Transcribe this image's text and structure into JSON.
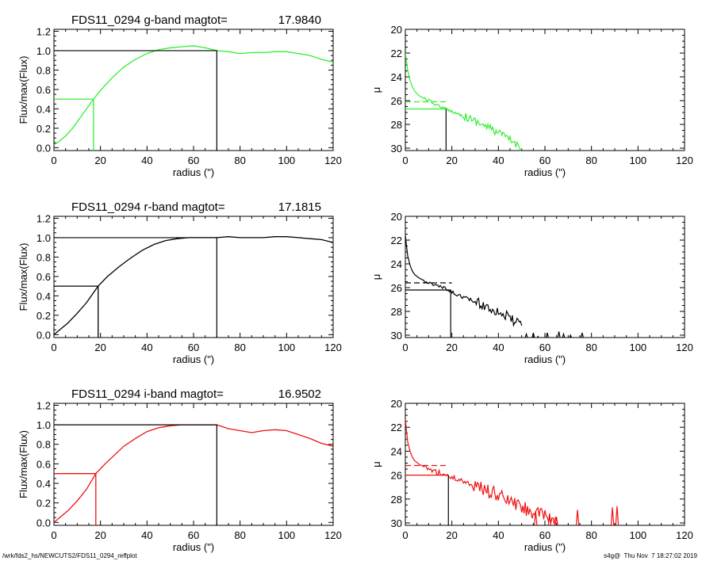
{
  "colors": {
    "g": "#33ee33",
    "r": "#000000",
    "i": "#ee1111",
    "axis": "#000000",
    "bg": "#ffffff"
  },
  "footer": {
    "left": "/wrk/fds2_hs/NEWCUTS2/FDS11_0294_reffplot",
    "right": "s4g@  Thu Nov  7 18:27:02 2019"
  },
  "chart_data": [
    {
      "type": "line",
      "panel": "g-growth",
      "title_prefix": "FDS11_0294 g-band  magtot=",
      "title_value": "17.9840",
      "xlabel": "radius (\")",
      "ylabel": "Flux/max(Flux)",
      "xlim": [
        0,
        120
      ],
      "ylim": [
        -0.03,
        1.22
      ],
      "xticks": [
        "0",
        "20",
        "40",
        "60",
        "80",
        "100",
        "120"
      ],
      "yticks": [
        "0.0",
        "0.2",
        "0.4",
        "0.6",
        "0.8",
        "1.0",
        "1.2"
      ],
      "series_color": "g",
      "x": [
        0,
        2,
        5,
        8,
        11,
        14,
        17,
        20,
        25,
        30,
        35,
        40,
        45,
        50,
        55,
        60,
        65,
        70,
        75,
        80,
        85,
        90,
        95,
        100,
        105,
        110,
        115,
        120
      ],
      "y": [
        0.03,
        0.06,
        0.12,
        0.2,
        0.3,
        0.4,
        0.5,
        0.59,
        0.72,
        0.83,
        0.91,
        0.97,
        1.01,
        1.03,
        1.04,
        1.05,
        1.03,
        1.0,
        0.99,
        0.97,
        0.98,
        0.98,
        0.99,
        0.99,
        0.97,
        0.95,
        0.91,
        0.88
      ],
      "half_light": {
        "radius": 17,
        "flux": 0.5
      },
      "total": {
        "radius": 70,
        "flux": 1.0
      }
    },
    {
      "type": "line",
      "panel": "g-profile",
      "xlabel": "radius (\")",
      "ylabel": "μ",
      "xlim": [
        0,
        120
      ],
      "ylim": [
        30.2,
        20
      ],
      "y_inverted": true,
      "xticks": [
        "0",
        "20",
        "40",
        "60",
        "80",
        "100",
        "120"
      ],
      "yticks": [
        "20",
        "22",
        "24",
        "26",
        "28",
        "30"
      ],
      "series_color": "g",
      "x": [
        0,
        0.5,
        1,
        2,
        3,
        4,
        6,
        8,
        10,
        13,
        16,
        20,
        25,
        30,
        35,
        40,
        45,
        50
      ],
      "y": [
        22.0,
        22.7,
        23.4,
        24.3,
        24.8,
        25.2,
        25.6,
        25.8,
        26.0,
        26.3,
        26.6,
        26.9,
        27.3,
        27.7,
        28.2,
        28.7,
        29.3,
        30.0
      ],
      "noise": 0.35,
      "noise_start": 25,
      "sky_level": 26.1,
      "sky_dash_to": 18,
      "reff": {
        "radius": 17.5,
        "mu": 26.7
      }
    },
    {
      "type": "line",
      "panel": "r-growth",
      "title_prefix": "FDS11_0294 r-band  magtot=",
      "title_value": "17.1815",
      "xlabel": "radius (\")",
      "ylabel": "Flux/max(Flux)",
      "xlim": [
        0,
        120
      ],
      "ylim": [
        -0.03,
        1.22
      ],
      "xticks": [
        "0",
        "20",
        "40",
        "60",
        "80",
        "100",
        "120"
      ],
      "yticks": [
        "0.0",
        "0.2",
        "0.4",
        "0.6",
        "0.8",
        "1.0",
        "1.2"
      ],
      "series_color": "r",
      "x": [
        0,
        3,
        6,
        10,
        14,
        19,
        23,
        28,
        33,
        38,
        43,
        48,
        53,
        58,
        63,
        70,
        75,
        80,
        85,
        90,
        95,
        100,
        105,
        110,
        115,
        120
      ],
      "y": [
        0.0,
        0.06,
        0.12,
        0.22,
        0.33,
        0.5,
        0.6,
        0.7,
        0.79,
        0.87,
        0.93,
        0.97,
        0.99,
        1.0,
        1.0,
        1.0,
        1.01,
        1.0,
        1.0,
        1.0,
        1.01,
        1.01,
        1.0,
        0.99,
        0.98,
        0.95
      ],
      "half_light": {
        "radius": 19,
        "flux": 0.5
      },
      "total": {
        "radius": 70,
        "flux": 1.0
      }
    },
    {
      "type": "line",
      "panel": "r-profile",
      "xlabel": "radius (\")",
      "ylabel": "μ",
      "xlim": [
        0,
        120
      ],
      "ylim": [
        30.2,
        20
      ],
      "y_inverted": true,
      "xticks": [
        "0",
        "20",
        "40",
        "60",
        "80",
        "100",
        "120"
      ],
      "yticks": [
        "20",
        "22",
        "24",
        "26",
        "28",
        "30"
      ],
      "series_color": "r",
      "x": [
        0,
        0.5,
        1,
        2,
        3,
        4,
        6,
        8,
        10,
        13,
        16,
        20,
        25,
        30,
        35,
        40,
        45,
        50
      ],
      "y": [
        21.6,
        22.5,
        23.3,
        24.1,
        24.6,
        24.9,
        25.2,
        25.4,
        25.6,
        25.8,
        26.0,
        26.4,
        26.8,
        27.2,
        27.6,
        28.0,
        28.6,
        29.2
      ],
      "noise": 0.45,
      "noise_start": 30,
      "sky_level": 25.6,
      "sky_dash_to": 20,
      "reff": {
        "radius": 19.5,
        "mu": 26.2
      },
      "spikes": [
        [
          52,
          29.9,
          30.3
        ],
        [
          55,
          29.8,
          30.3
        ],
        [
          57,
          30.1,
          30.3
        ],
        [
          61,
          29.8,
          30.3
        ],
        [
          66,
          29.7,
          30.3
        ],
        [
          68,
          29.9,
          30.3
        ],
        [
          71,
          30.0,
          30.3
        ],
        [
          76,
          29.8,
          30.3
        ]
      ]
    },
    {
      "type": "line",
      "panel": "i-growth",
      "title_prefix": "FDS11_0294 i-band  magtot=",
      "title_value": "16.9502",
      "xlabel": "radius (\")",
      "ylabel": "Flux/max(Flux)",
      "xlim": [
        0,
        120
      ],
      "ylim": [
        -0.03,
        1.22
      ],
      "xticks": [
        "0",
        "20",
        "40",
        "60",
        "80",
        "100",
        "120"
      ],
      "yticks": [
        "0.0",
        "0.2",
        "0.4",
        "0.6",
        "0.8",
        "1.0",
        "1.2"
      ],
      "series_color": "i",
      "x": [
        0,
        3,
        6,
        10,
        14,
        18,
        22,
        26,
        30,
        35,
        40,
        45,
        50,
        55,
        60,
        65,
        70,
        75,
        80,
        85,
        90,
        95,
        100,
        105,
        110,
        115,
        120
      ],
      "y": [
        0.0,
        0.06,
        0.12,
        0.22,
        0.34,
        0.5,
        0.6,
        0.69,
        0.78,
        0.86,
        0.93,
        0.97,
        0.99,
        1.0,
        1.0,
        1.0,
        1.0,
        0.96,
        0.94,
        0.92,
        0.94,
        0.95,
        0.94,
        0.9,
        0.86,
        0.81,
        0.78
      ],
      "half_light": {
        "radius": 18,
        "flux": 0.5
      },
      "total": {
        "radius": 70,
        "flux": 1.0
      }
    },
    {
      "type": "line",
      "panel": "i-profile",
      "xlabel": "radius (\")",
      "ylabel": "μ",
      "xlim": [
        0,
        120
      ],
      "ylim": [
        30.2,
        20
      ],
      "y_inverted": true,
      "xticks": [
        "0",
        "20",
        "40",
        "60",
        "80",
        "100",
        "120"
      ],
      "yticks": [
        "20",
        "22",
        "24",
        "26",
        "28",
        "30"
      ],
      "series_color": "i",
      "x": [
        0,
        0.5,
        1,
        2,
        3,
        4,
        6,
        8,
        10,
        13,
        16,
        20,
        25,
        30,
        35,
        40,
        45,
        50,
        55,
        60,
        65
      ],
      "y": [
        21.3,
        22.3,
        23.2,
        24.0,
        24.5,
        24.8,
        25.1,
        25.3,
        25.5,
        25.7,
        25.9,
        26.2,
        26.5,
        26.9,
        27.3,
        27.7,
        28.2,
        28.7,
        29.1,
        29.5,
        29.8
      ],
      "noise": 0.6,
      "noise_start": 28,
      "sky_level": 25.2,
      "sky_dash_to": 18,
      "reff": {
        "radius": 18.5,
        "mu": 26.0
      },
      "spikes": [
        [
          56,
          29.0,
          30.3
        ],
        [
          62,
          29.2,
          30.3
        ],
        [
          65,
          29.5,
          30.3
        ],
        [
          74,
          28.9,
          30.3
        ],
        [
          89,
          28.7,
          30.3
        ],
        [
          91,
          28.6,
          30.3
        ]
      ]
    }
  ]
}
